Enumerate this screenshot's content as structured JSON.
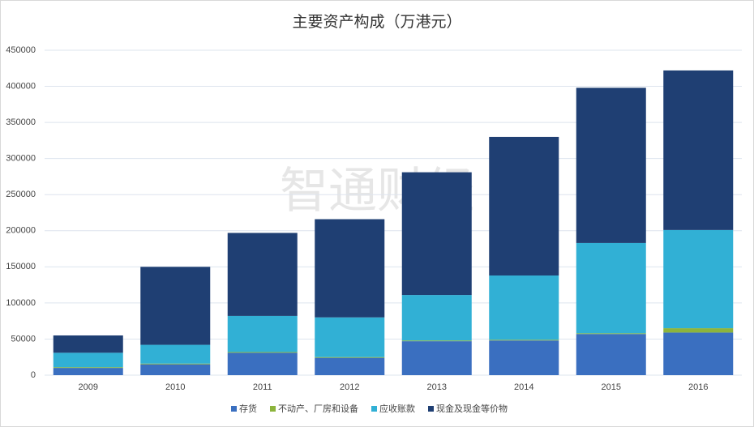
{
  "chart_data": {
    "type": "stacked_bar",
    "title": "主要资产构成（万港元）",
    "watermark": "智通财经",
    "categories": [
      "2009",
      "2010",
      "2011",
      "2012",
      "2013",
      "2014",
      "2015",
      "2016"
    ],
    "series": [
      {
        "name": "存货",
        "color": "#3a6fc0",
        "values": [
          10000,
          15000,
          31000,
          24000,
          47000,
          48000,
          57000,
          59000
        ]
      },
      {
        "name": "不动产、厂房和设备",
        "color": "#8cb43c",
        "values": [
          1000,
          1000,
          1000,
          1000,
          1000,
          1000,
          1000,
          6000
        ]
      },
      {
        "name": "应收账款",
        "color": "#31b0d5",
        "values": [
          20000,
          26000,
          50000,
          55000,
          63000,
          89000,
          125000,
          136000
        ]
      },
      {
        "name": "现金及现金等价物",
        "color": "#1f3f73",
        "values": [
          24000,
          108000,
          115000,
          136000,
          170000,
          192000,
          215000,
          221000
        ]
      }
    ],
    "ylim": [
      0,
      450000
    ],
    "yticks": [
      0,
      50000,
      100000,
      150000,
      200000,
      250000,
      300000,
      350000,
      400000,
      450000
    ],
    "grid": true,
    "legend": "bottom"
  }
}
